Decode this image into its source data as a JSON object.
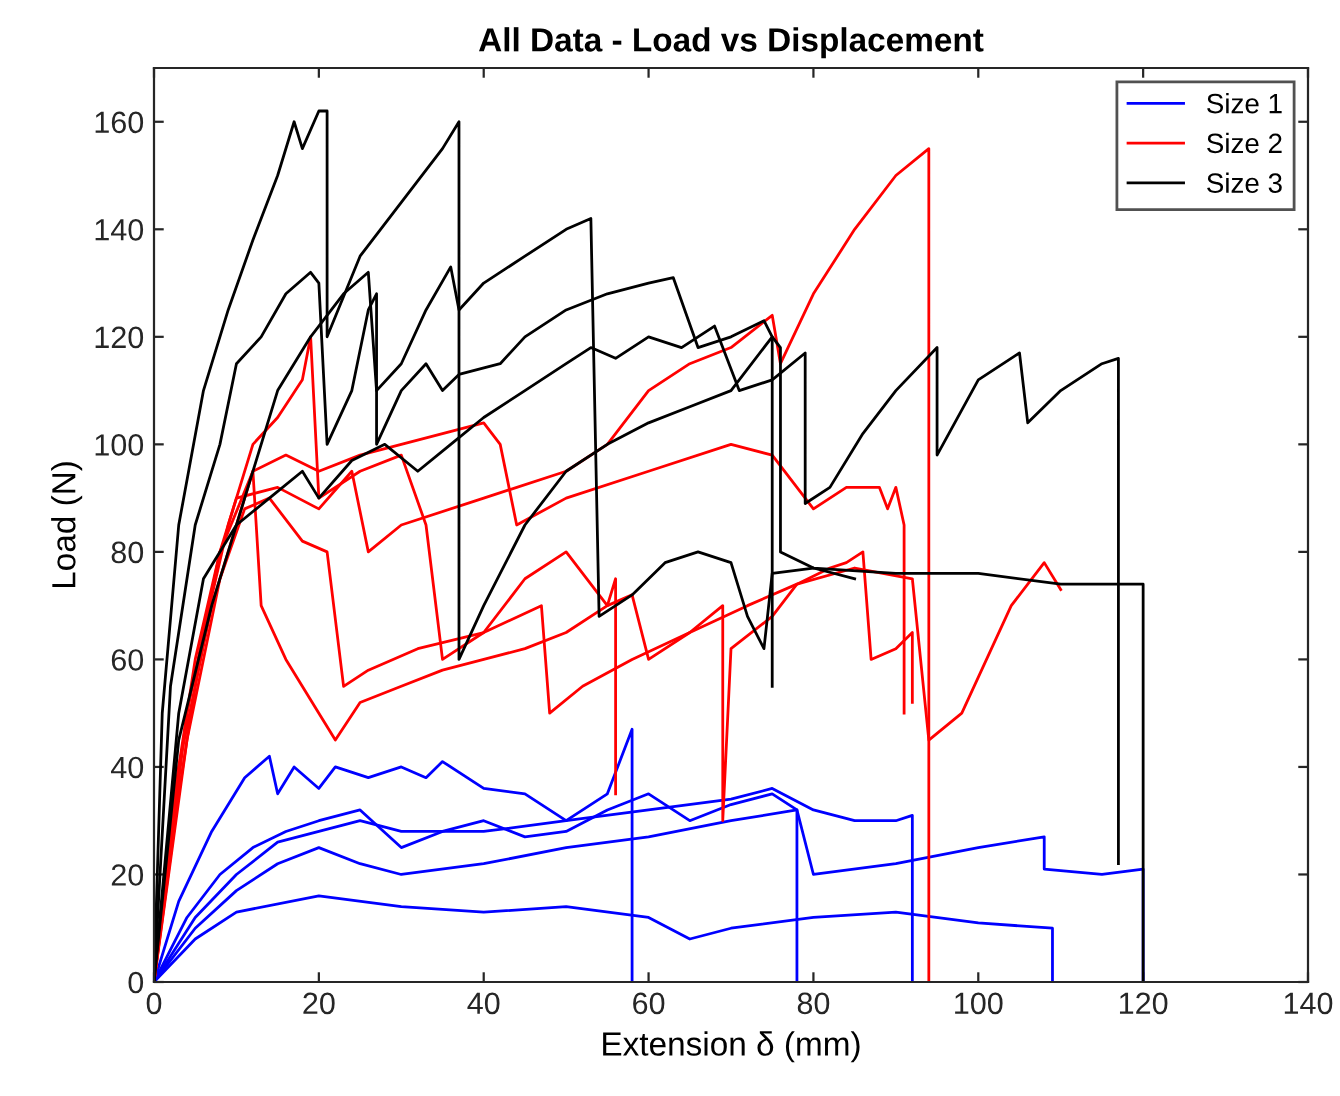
{
  "chart_data": {
    "type": "line",
    "title": "All Data - Load vs Displacement",
    "xlabel": "Extension δ (mm)",
    "ylabel": "Load (N)",
    "xlim": [
      0,
      140
    ],
    "ylim": [
      0,
      170
    ],
    "xticks": [
      0,
      20,
      40,
      60,
      80,
      100,
      120,
      140
    ],
    "yticks": [
      0,
      20,
      40,
      60,
      80,
      100,
      120,
      140,
      160
    ],
    "grid": false,
    "legend": "top right",
    "series": [
      {
        "name": "Size 1",
        "color": "#0000ff",
        "x": [
          0,
          3,
          7,
          11,
          14,
          15,
          17,
          20,
          22,
          26,
          30,
          33,
          35,
          40,
          45,
          50,
          55,
          58,
          58
        ],
        "values": [
          0,
          15,
          28,
          38,
          42,
          35,
          40,
          36,
          40,
          38,
          40,
          38,
          41,
          36,
          35,
          30,
          35,
          47,
          0
        ]
      },
      {
        "color": "#0000ff",
        "x": [
          0,
          4,
          8,
          12,
          16,
          20,
          25,
          30,
          35,
          40,
          45,
          50,
          55,
          60,
          65,
          70,
          75,
          78,
          78
        ],
        "values": [
          0,
          12,
          20,
          25,
          28,
          30,
          32,
          25,
          28,
          30,
          27,
          28,
          32,
          35,
          30,
          33,
          35,
          32,
          0
        ]
      },
      {
        "color": "#0000ff",
        "x": [
          0,
          5,
          10,
          15,
          20,
          25,
          30,
          40,
          50,
          60,
          70,
          75,
          80,
          85,
          90,
          92,
          92
        ],
        "values": [
          0,
          12,
          20,
          26,
          28,
          30,
          28,
          28,
          30,
          32,
          34,
          36,
          32,
          30,
          30,
          31,
          0
        ]
      },
      {
        "color": "#0000ff",
        "x": [
          0,
          5,
          10,
          15,
          20,
          25,
          30,
          40,
          50,
          60,
          70,
          78,
          80,
          90,
          100,
          108,
          108,
          115,
          120,
          120
        ],
        "values": [
          0,
          10,
          17,
          22,
          25,
          22,
          20,
          22,
          25,
          27,
          30,
          32,
          20,
          22,
          25,
          27,
          21,
          20,
          21,
          0
        ]
      },
      {
        "color": "#0000ff",
        "x": [
          0,
          5,
          10,
          20,
          30,
          40,
          50,
          60,
          65,
          70,
          80,
          90,
          100,
          109,
          109
        ],
        "values": [
          0,
          8,
          13,
          16,
          14,
          13,
          14,
          12,
          8,
          10,
          12,
          13,
          11,
          10,
          0
        ]
      },
      {
        "name": "Size 2",
        "color": "#ff0000",
        "x": [
          0,
          2,
          5,
          8,
          10,
          15,
          20,
          24,
          26,
          30,
          40,
          50,
          55,
          60,
          65,
          70,
          75,
          76,
          80,
          85,
          90,
          94,
          94
        ],
        "values": [
          0,
          30,
          60,
          80,
          90,
          92,
          88,
          95,
          80,
          85,
          90,
          95,
          100,
          110,
          115,
          118,
          124,
          115,
          128,
          140,
          150,
          155,
          0
        ]
      },
      {
        "color": "#ff0000",
        "x": [
          0,
          3,
          6,
          9,
          12,
          15,
          18,
          19,
          20,
          25,
          30,
          33,
          35,
          40,
          45,
          50,
          55,
          56,
          56
        ],
        "values": [
          0,
          35,
          65,
          85,
          100,
          105,
          112,
          120,
          90,
          95,
          98,
          85,
          60,
          65,
          75,
          80,
          70,
          75,
          35
        ]
      },
      {
        "color": "#ff0000",
        "x": [
          0,
          3,
          7,
          10,
          12,
          13,
          16,
          20,
          22,
          25,
          30,
          35,
          40,
          45,
          50,
          55,
          58,
          60,
          65,
          69,
          69,
          70,
          75,
          78,
          85,
          92,
          94,
          98,
          104,
          108,
          110
        ],
        "values": [
          0,
          40,
          70,
          85,
          95,
          70,
          60,
          50,
          45,
          52,
          55,
          58,
          60,
          62,
          65,
          70,
          72,
          60,
          65,
          70,
          30,
          62,
          68,
          74,
          77,
          75,
          45,
          50,
          70,
          78,
          73
        ]
      },
      {
        "color": "#ff0000",
        "x": [
          0,
          4,
          8,
          11,
          14,
          18,
          21,
          23,
          26,
          32,
          40,
          47,
          48,
          52,
          58,
          65,
          72,
          78,
          82,
          84,
          86,
          87,
          90,
          92,
          92
        ],
        "values": [
          0,
          45,
          75,
          88,
          90,
          82,
          80,
          55,
          58,
          62,
          65,
          70,
          50,
          55,
          60,
          65,
          70,
          74,
          77,
          78,
          80,
          60,
          62,
          65,
          52
        ]
      },
      {
        "color": "#ff0000",
        "x": [
          0,
          4,
          8,
          12,
          16,
          20,
          25,
          30,
          35,
          40,
          42,
          44,
          50,
          60,
          70,
          75,
          80,
          84,
          88,
          89,
          90,
          91,
          91
        ],
        "values": [
          0,
          50,
          80,
          95,
          98,
          95,
          98,
          100,
          102,
          104,
          100,
          85,
          90,
          95,
          100,
          98,
          88,
          92,
          92,
          88,
          92,
          85,
          50
        ]
      },
      {
        "name": "Size 3",
        "color": "#000000",
        "x": [
          0,
          1,
          3,
          6,
          9,
          12,
          15,
          17,
          18,
          20,
          21,
          21,
          25,
          30,
          35,
          37,
          37,
          40,
          45,
          50,
          55,
          60,
          65,
          70,
          75,
          76,
          76,
          80,
          90,
          100,
          110,
          120,
          120
        ],
        "values": [
          0,
          50,
          85,
          110,
          125,
          138,
          150,
          160,
          155,
          162,
          162,
          120,
          135,
          145,
          155,
          160,
          60,
          70,
          85,
          95,
          100,
          104,
          107,
          110,
          120,
          118,
          80,
          77,
          76,
          76,
          74,
          74,
          0
        ]
      },
      {
        "color": "#000000",
        "x": [
          0,
          2,
          5,
          8,
          10,
          13,
          16,
          19,
          20,
          21,
          24,
          26,
          27,
          27,
          30,
          33,
          35,
          37,
          42,
          45,
          50,
          55,
          60,
          63,
          66,
          70,
          74,
          75,
          75
        ],
        "values": [
          0,
          55,
          85,
          100,
          115,
          120,
          128,
          132,
          130,
          100,
          110,
          125,
          128,
          100,
          110,
          115,
          110,
          113,
          115,
          120,
          125,
          128,
          130,
          131,
          118,
          120,
          123,
          120,
          55
        ]
      },
      {
        "color": "#000000",
        "x": [
          0,
          3,
          6,
          10,
          14,
          18,
          20,
          24,
          28,
          32,
          36,
          40,
          45,
          50,
          53,
          56,
          60,
          64,
          68,
          71,
          75,
          79,
          79,
          82,
          86,
          90,
          95,
          95,
          100,
          105,
          106,
          110,
          115,
          117,
          117
        ],
        "values": [
          0,
          50,
          75,
          85,
          90,
          95,
          90,
          97,
          100,
          95,
          100,
          105,
          110,
          115,
          118,
          116,
          120,
          118,
          122,
          110,
          112,
          117,
          89,
          92,
          102,
          110,
          118,
          98,
          112,
          117,
          104,
          110,
          115,
          116,
          22
        ]
      },
      {
        "color": "#000000",
        "x": [
          0,
          3,
          7,
          11,
          15,
          19,
          23,
          26,
          27,
          30,
          33,
          36,
          37,
          40,
          45,
          50,
          53,
          54,
          58,
          62,
          66,
          70,
          72,
          74,
          75,
          80,
          85
        ],
        "values": [
          0,
          45,
          70,
          90,
          110,
          120,
          128,
          132,
          110,
          115,
          125,
          133,
          125,
          130,
          135,
          140,
          142,
          68,
          72,
          78,
          80,
          78,
          68,
          62,
          76,
          77,
          75
        ]
      }
    ]
  }
}
